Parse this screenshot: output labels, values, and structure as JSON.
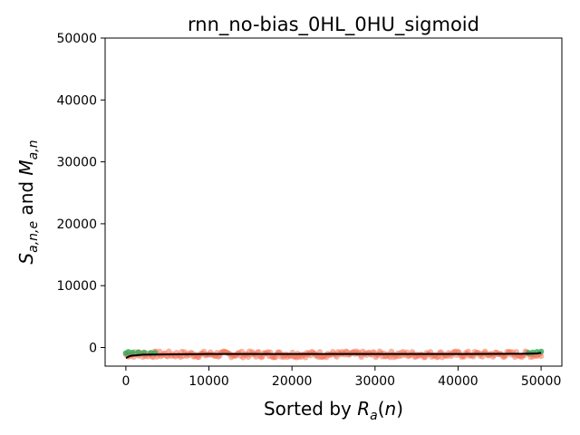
{
  "chart_data": {
    "type": "scatter",
    "title": "rnn_no-bias_0HL_0HU_sigmoid",
    "xlabel": "Sorted by R_a(n)",
    "ylabel": "S_{a,n,e} and M_{a,n}",
    "xlim": [
      -2500,
      52500
    ],
    "ylim": [
      -3000,
      50000
    ],
    "xticks": [
      "0",
      "10000",
      "20000",
      "30000",
      "40000",
      "50000"
    ],
    "yticks": [
      "0",
      "10000",
      "20000",
      "30000",
      "40000",
      "50000"
    ],
    "grid": false,
    "legend": "none",
    "colors": {
      "scatter_low": "#f4755a",
      "scatter_high": "#3aaa5c",
      "mean_line": "#000000"
    },
    "series": [
      {
        "kind": "scatter_band",
        "color_role": "scatter_low",
        "x_start": 0,
        "x_end": 50000,
        "y_center": -1100,
        "y_spread": 500
      },
      {
        "kind": "scatter_points",
        "color_role": "scatter_high",
        "points": [
          [
            0,
            -900
          ],
          [
            300,
            -700
          ],
          [
            800,
            -800
          ],
          [
            1500,
            -750
          ],
          [
            2200,
            -800
          ],
          [
            3000,
            -850
          ],
          [
            3500,
            -900
          ],
          [
            48500,
            -850
          ],
          [
            49000,
            -800
          ],
          [
            49500,
            -700
          ],
          [
            50000,
            -650
          ]
        ]
      },
      {
        "kind": "line",
        "color_role": "mean_line",
        "x": [
          0,
          500,
          2000,
          5000,
          10000,
          20000,
          30000,
          40000,
          48000,
          49500,
          50000
        ],
        "y": [
          -1700,
          -1350,
          -1150,
          -1100,
          -1050,
          -1050,
          -1050,
          -1050,
          -1000,
          -950,
          -850
        ]
      }
    ]
  }
}
